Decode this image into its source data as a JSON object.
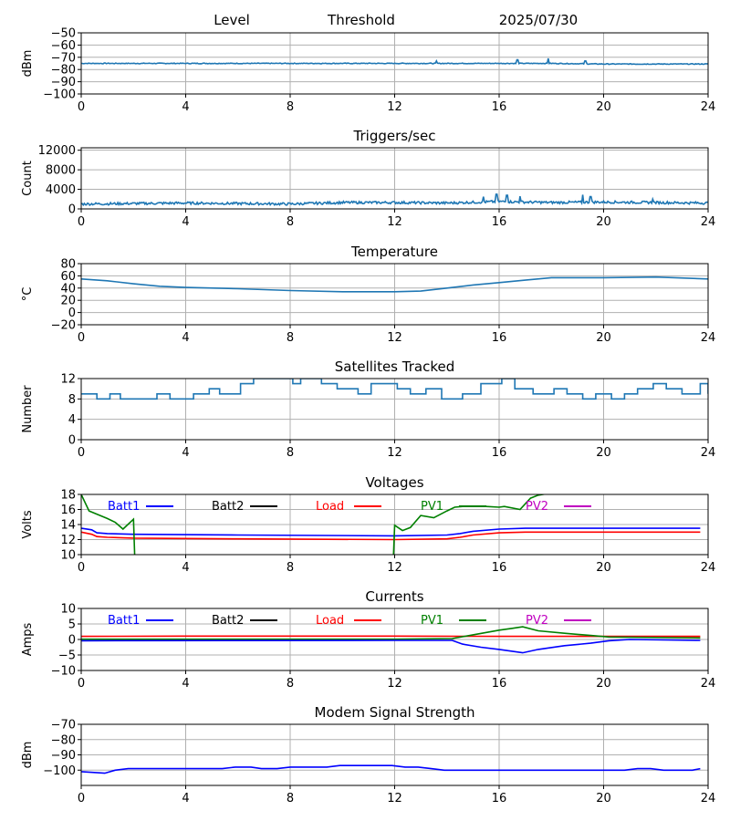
{
  "header": {
    "level": "Level",
    "threshold": "Threshold",
    "date": "2025/07/30"
  },
  "colors": {
    "series": "#1f77b4",
    "batt1": "#0000ff",
    "batt2": "#000000",
    "load": "#ff0000",
    "pv1": "#008000",
    "pv2": "#c000c0",
    "grid": "#b0b0b0"
  },
  "chart_data": [
    {
      "type": "line",
      "title": "",
      "ylabel": "dBm",
      "ylim": [
        -100,
        -50
      ],
      "yticks": [
        -100,
        -90,
        -80,
        -70,
        -60,
        -50
      ],
      "xlim": [
        0,
        24
      ],
      "xticks": [
        0,
        4,
        8,
        12,
        16,
        20,
        24
      ],
      "grid": true,
      "noise": 0.3,
      "spikes": [
        [
          13.6,
          -73
        ],
        [
          16.7,
          -72
        ],
        [
          17.9,
          -71
        ],
        [
          19.3,
          -73
        ]
      ],
      "series": [
        {
          "x": [
            0,
            4,
            8,
            12,
            14,
            16,
            18,
            20,
            24
          ],
          "y": [
            -75,
            -75,
            -75,
            -75,
            -75,
            -75,
            -75,
            -75.5,
            -75.5
          ]
        }
      ]
    },
    {
      "type": "line",
      "title": "Triggers/sec",
      "ylabel": "Count",
      "ylim": [
        0,
        12500
      ],
      "yticks": [
        0,
        4000,
        8000,
        12000
      ],
      "xlim": [
        0,
        24
      ],
      "xticks": [
        0,
        4,
        8,
        12,
        16,
        20,
        24
      ],
      "grid": true,
      "noise": 250,
      "spikes": [
        [
          15.4,
          2500
        ],
        [
          15.9,
          3000
        ],
        [
          16.3,
          2800
        ],
        [
          16.8,
          2600
        ],
        [
          19.2,
          2900
        ],
        [
          19.5,
          2500
        ],
        [
          21.9,
          2000
        ]
      ],
      "series": [
        {
          "x": [
            0,
            4,
            8,
            10,
            12,
            14,
            16,
            18,
            20,
            24
          ],
          "y": [
            1000,
            1200,
            1000,
            1300,
            1300,
            1200,
            1500,
            1300,
            1400,
            1200
          ]
        }
      ]
    },
    {
      "type": "line",
      "title": "Temperature",
      "ylabel": "°C",
      "ylim": [
        -20,
        80
      ],
      "yticks": [
        -20,
        0,
        20,
        40,
        60,
        80
      ],
      "xlim": [
        0,
        24
      ],
      "xticks": [
        0,
        4,
        8,
        12,
        16,
        20,
        24
      ],
      "grid": true,
      "noise": 0,
      "series": [
        {
          "x": [
            0,
            1,
            2,
            3,
            4,
            6,
            8,
            10,
            12,
            13,
            14,
            15,
            16,
            17,
            18,
            20,
            22,
            24
          ],
          "y": [
            55,
            52,
            47,
            43,
            41,
            39,
            36,
            34,
            34,
            35,
            40,
            45,
            49,
            53,
            57,
            57,
            58,
            55
          ]
        }
      ]
    },
    {
      "type": "line",
      "title": "Satellites Tracked",
      "ylabel": "Number",
      "ylim": [
        0,
        12
      ],
      "yticks": [
        0,
        4,
        8,
        12
      ],
      "xlim": [
        0,
        24
      ],
      "xticks": [
        0,
        4,
        8,
        12,
        16,
        20,
        24
      ],
      "grid": true,
      "noise": 0,
      "step": true,
      "series": [
        {
          "x": [
            0,
            0.6,
            1.1,
            1.5,
            2.9,
            3.4,
            4.3,
            4.9,
            5.3,
            6.1,
            6.6,
            8.1,
            8.4,
            9.2,
            9.8,
            10.6,
            11.1,
            12.1,
            12.6,
            13.2,
            13.8,
            14.6,
            15.3,
            16.1,
            16.6,
            17.3,
            18.1,
            18.6,
            19.2,
            19.7,
            20.3,
            20.8,
            21.3,
            21.9,
            22.4,
            23.0,
            23.7,
            24
          ],
          "y": [
            9,
            8,
            9,
            8,
            9,
            8,
            9,
            10,
            9,
            11,
            12,
            11,
            12,
            11,
            10,
            9,
            11,
            10,
            9,
            10,
            8,
            9,
            11,
            12,
            10,
            9,
            10,
            9,
            8,
            9,
            8,
            9,
            10,
            11,
            10,
            9,
            11,
            9
          ]
        }
      ]
    },
    {
      "type": "line",
      "title": "Voltages",
      "ylabel": "Volts",
      "ylim": [
        10,
        18
      ],
      "yticks": [
        10,
        12,
        14,
        16,
        18
      ],
      "xlim": [
        0,
        24
      ],
      "xticks": [
        0,
        4,
        8,
        12,
        16,
        20,
        24
      ],
      "grid": true,
      "noise": 0,
      "legend": [
        "Batt1",
        "Batt2",
        "Load",
        "PV1",
        "PV2"
      ],
      "series": [
        {
          "name": "Batt1",
          "color": "#0000ff",
          "x": [
            0,
            0.4,
            0.6,
            1,
            2,
            6,
            12,
            14,
            14.5,
            15,
            16,
            17,
            23.7
          ],
          "y": [
            13.5,
            13.3,
            12.9,
            12.8,
            12.7,
            12.6,
            12.5,
            12.6,
            12.8,
            13.1,
            13.4,
            13.5,
            13.5
          ]
        },
        {
          "name": "Load",
          "color": "#ff0000",
          "x": [
            0,
            0.4,
            0.6,
            1,
            2,
            6,
            12,
            14,
            14.5,
            15,
            16,
            17,
            23.7
          ],
          "y": [
            13.0,
            12.7,
            12.4,
            12.3,
            12.2,
            12.1,
            12.0,
            12.1,
            12.3,
            12.6,
            12.9,
            13.0,
            13.0
          ]
        },
        {
          "name": "PV1",
          "color": "#008000",
          "x": [
            0,
            0.3,
            1,
            1.3,
            1.6,
            2.0,
            2.05
          ],
          "y": [
            18,
            15.8,
            14.8,
            14.3,
            13.4,
            14.7,
            9.5
          ]
        },
        {
          "name": "PV1",
          "color": "#008000",
          "x": [
            11.95,
            12,
            12.3,
            12.6,
            13.0,
            13.5,
            14.0,
            14.3,
            14.6,
            15.5,
            16.0,
            16.2,
            16.8,
            17.2,
            17.5,
            18.0
          ],
          "y": [
            9.5,
            13.9,
            13.2,
            13.6,
            15.2,
            14.9,
            15.8,
            16.3,
            16.4,
            16.4,
            16.3,
            16.4,
            16.0,
            17.5,
            17.9,
            18.2
          ]
        }
      ]
    },
    {
      "type": "line",
      "title": "Currents",
      "ylabel": "Amps",
      "ylim": [
        -10,
        10
      ],
      "yticks": [
        -10,
        -5,
        0,
        5,
        10
      ],
      "xlim": [
        0,
        24
      ],
      "xticks": [
        0,
        4,
        8,
        12,
        16,
        20,
        24
      ],
      "grid": true,
      "noise": 0,
      "legend": [
        "Batt1",
        "Batt2",
        "Load",
        "PV1",
        "PV2"
      ],
      "series": [
        {
          "name": "Load",
          "color": "#ff0000",
          "x": [
            0,
            4,
            12,
            16,
            20,
            23.7
          ],
          "y": [
            1.0,
            1.1,
            1.1,
            1.0,
            1.0,
            1.0
          ]
        },
        {
          "name": "PV1",
          "color": "#008000",
          "x": [
            0,
            12,
            14.2,
            15,
            16,
            16.5,
            16.9,
            17.5,
            18.5,
            19.5,
            20.2,
            23.7
          ],
          "y": [
            0.1,
            0.1,
            0.3,
            1.5,
            3.0,
            3.6,
            4.1,
            2.8,
            2.0,
            1.3,
            0.8,
            0.5
          ]
        },
        {
          "name": "Batt1",
          "color": "#0000ff",
          "x": [
            0,
            12,
            14.2,
            14.6,
            15.3,
            16,
            16.5,
            16.9,
            17.5,
            18.5,
            19.5,
            20.2,
            21,
            23.7
          ],
          "y": [
            -0.4,
            -0.3,
            -0.3,
            -1.5,
            -2.5,
            -3.2,
            -3.8,
            -4.3,
            -3.2,
            -2.0,
            -1.2,
            -0.4,
            0,
            -0.3
          ]
        }
      ]
    },
    {
      "type": "line",
      "title": "Modem Signal Strength",
      "ylabel": "dBm",
      "ylim": [
        -110,
        -70
      ],
      "yticks": [
        -100,
        -90,
        -80,
        -70
      ],
      "xlim": [
        0,
        24
      ],
      "xticks": [
        0,
        4,
        8,
        12,
        16,
        20,
        24
      ],
      "grid": true,
      "noise": 0,
      "series": [
        {
          "name": "Modem",
          "color": "#0000ff",
          "x": [
            0,
            0.5,
            0.9,
            1.3,
            1.8,
            5.4,
            5.9,
            6.5,
            6.9,
            7.5,
            8.0,
            9.4,
            9.9,
            11.9,
            12.4,
            12.9,
            13.4,
            13.9,
            14.4,
            20.8,
            21.3,
            21.8,
            22.3,
            22.8,
            23.4,
            23.7
          ],
          "y": [
            -101,
            -101.5,
            -102,
            -100,
            -99,
            -99,
            -98,
            -98,
            -99,
            -99,
            -98,
            -98,
            -97,
            -97,
            -98,
            -98,
            -99,
            -100,
            -100,
            -100,
            -99,
            -99,
            -100,
            -100,
            -100,
            -99
          ]
        }
      ]
    }
  ]
}
